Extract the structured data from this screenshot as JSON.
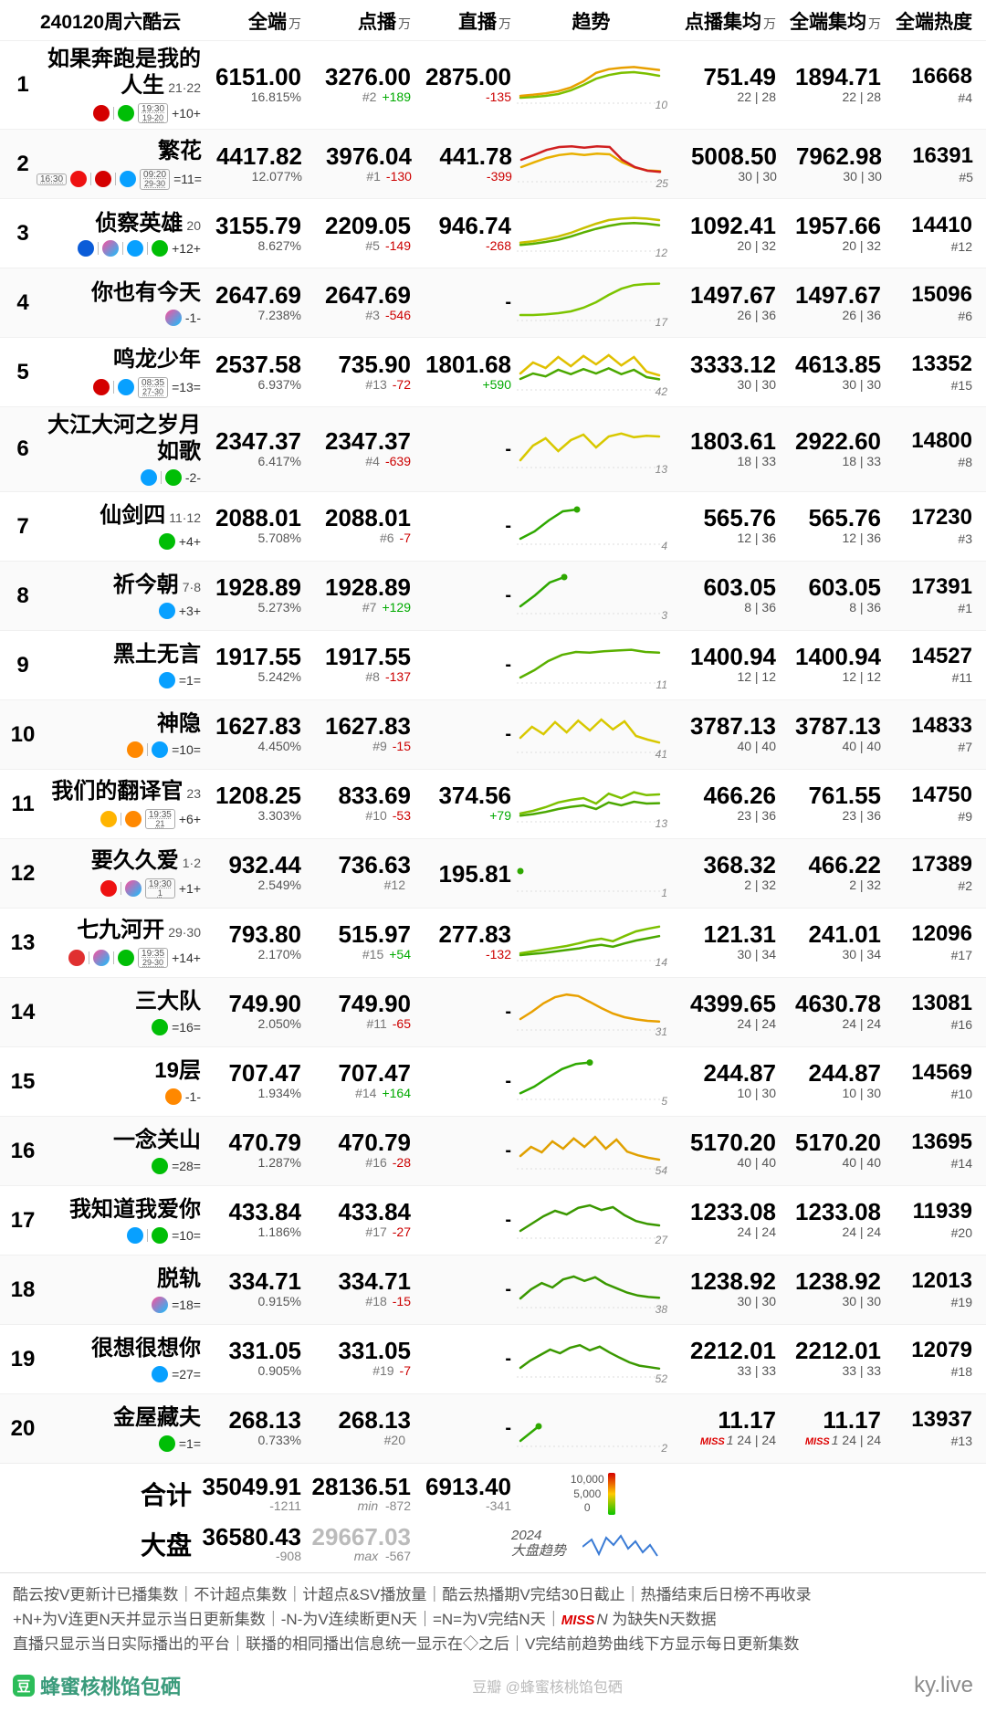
{
  "title": "240120周六酷云",
  "columns": {
    "full": "全端",
    "vod": "点播",
    "live": "直播",
    "trend": "趋势",
    "vavg": "点播集均",
    "favg": "全端集均",
    "heat": "全端热度",
    "unit": "万"
  },
  "spark_colors": {
    "high": "#f08000",
    "mid": "#d8c000",
    "low": "#2ea800",
    "red": "#d02020",
    "grid": "#e4e4e4"
  },
  "rows": [
    {
      "rank": 1,
      "name": "如果奔跑是我的人生",
      "eps": "21·22",
      "streak": "+10+",
      "platforms": [
        "cctv",
        "iqiyi"
      ],
      "time": {
        "t1": "19:30",
        "t2": "19-20"
      },
      "full": "6151.00",
      "full_pct": "16.815%",
      "vod": "3276.00",
      "vod_rank": "#2",
      "vod_delta": "+189",
      "live": "2875.00",
      "live_delta": "-135",
      "trend": {
        "series": [
          0.15,
          0.18,
          0.22,
          0.28,
          0.38,
          0.55,
          0.78,
          0.88,
          0.92,
          0.94,
          0.9,
          0.86
        ],
        "color": "#e8a000",
        "series2": [
          0.1,
          0.12,
          0.15,
          0.2,
          0.3,
          0.45,
          0.62,
          0.72,
          0.78,
          0.8,
          0.76,
          0.7
        ],
        "color2": "#7cc000",
        "note": "10"
      },
      "vavg": "751.49",
      "vavg_sub": "22 | 28",
      "favg": "1894.71",
      "favg_sub": "22 | 28",
      "heat": "16668",
      "heat_rank": "#4"
    },
    {
      "rank": 2,
      "name": "繁花",
      "eps": "",
      "streak": "=11=",
      "platforms": [
        "dragon",
        "cctv",
        "tenc"
      ],
      "time": {
        "t1": "09:20",
        "t2": "29-30"
      },
      "time_pre": "16:30",
      "full": "4417.82",
      "full_pct": "12.077%",
      "vod": "3976.04",
      "vod_rank": "#1",
      "vod_delta": "-130",
      "live": "441.78",
      "live_delta": "-399",
      "trend": {
        "series": [
          0.55,
          0.68,
          0.82,
          0.9,
          0.92,
          0.88,
          0.92,
          0.9,
          0.55,
          0.35,
          0.25,
          0.22
        ],
        "color": "#d02020",
        "series2": [
          0.35,
          0.48,
          0.6,
          0.68,
          0.72,
          0.68,
          0.72,
          0.7,
          0.48,
          0.34,
          0.26,
          0.24
        ],
        "color2": "#e8b000",
        "note": "25"
      },
      "vavg": "5008.50",
      "vavg_sub": "30 | 30",
      "favg": "7962.98",
      "favg_sub": "30 | 30",
      "heat": "16391",
      "heat_rank": "#5"
    },
    {
      "rank": 3,
      "name": "侦察英雄",
      "eps": "20",
      "streak": "+12+",
      "platforms": [
        "ztv",
        "youku",
        "tenc",
        "iqiyi"
      ],
      "full": "3155.79",
      "full_pct": "8.627%",
      "vod": "2209.05",
      "vod_rank": "#5",
      "vod_delta": "-149",
      "live": "946.74",
      "live_delta": "-268",
      "trend": {
        "series": [
          0.18,
          0.22,
          0.28,
          0.35,
          0.45,
          0.58,
          0.7,
          0.8,
          0.84,
          0.86,
          0.84,
          0.8
        ],
        "color": "#c8c000",
        "series2": [
          0.12,
          0.15,
          0.2,
          0.26,
          0.35,
          0.46,
          0.56,
          0.64,
          0.7,
          0.72,
          0.7,
          0.66
        ],
        "color2": "#5ab000",
        "note": "12"
      },
      "vavg": "1092.41",
      "vavg_sub": "20 | 32",
      "favg": "1957.66",
      "favg_sub": "20 | 32",
      "heat": "14410",
      "heat_rank": "#12"
    },
    {
      "rank": 4,
      "name": "你也有今天",
      "eps": "",
      "streak": "-1-",
      "platforms": [
        "youku"
      ],
      "full": "2647.69",
      "full_pct": "7.238%",
      "vod": "2647.69",
      "vod_rank": "#3",
      "vod_delta": "-546",
      "live": "-",
      "live_delta": "",
      "trend": {
        "series": [
          0.1,
          0.1,
          0.12,
          0.15,
          0.2,
          0.3,
          0.45,
          0.65,
          0.82,
          0.92,
          0.95,
          0.96
        ],
        "color": "#7cc400",
        "note": "17"
      },
      "vavg": "1497.67",
      "vavg_sub": "26 | 36",
      "favg": "1497.67",
      "favg_sub": "26 | 36",
      "heat": "15096",
      "heat_rank": "#6"
    },
    {
      "rank": 5,
      "name": "鸣龙少年",
      "eps": "",
      "streak": "=13=",
      "platforms": [
        "cctv",
        "tenc"
      ],
      "time": {
        "t1": "08:35",
        "t2": "27-30"
      },
      "full": "2537.58",
      "full_pct": "6.937%",
      "vod": "735.90",
      "vod_rank": "#13",
      "vod_delta": "-72",
      "live": "1801.68",
      "live_delta": "+590",
      "trend": {
        "series": [
          0.4,
          0.7,
          0.55,
          0.85,
          0.6,
          0.88,
          0.65,
          0.9,
          0.62,
          0.85,
          0.45,
          0.35
        ],
        "color": "#e0c000",
        "series2": [
          0.25,
          0.4,
          0.32,
          0.5,
          0.38,
          0.52,
          0.4,
          0.54,
          0.38,
          0.5,
          0.3,
          0.24
        ],
        "color2": "#4aa800",
        "note": "42"
      },
      "vavg": "3333.12",
      "vavg_sub": "30 | 30",
      "favg": "4613.85",
      "favg_sub": "30 | 30",
      "heat": "13352",
      "heat_rank": "#15"
    },
    {
      "rank": 6,
      "name": "大江大河之岁月如歌",
      "eps": "",
      "streak": "-2-",
      "platforms": [
        "tenc",
        "iqiyi"
      ],
      "full": "2347.37",
      "full_pct": "6.417%",
      "vod": "2347.37",
      "vod_rank": "#4",
      "vod_delta": "-639",
      "live": "-",
      "live_delta": "",
      "trend": {
        "series": [
          0.15,
          0.55,
          0.75,
          0.4,
          0.7,
          0.85,
          0.5,
          0.8,
          0.88,
          0.78,
          0.82,
          0.8
        ],
        "color": "#d8c800",
        "note": "13"
      },
      "vavg": "1803.61",
      "vavg_sub": "18 | 33",
      "favg": "2922.60",
      "favg_sub": "18 | 33",
      "heat": "14800",
      "heat_rank": "#8"
    },
    {
      "rank": 7,
      "name": "仙剑四",
      "eps": "11·12",
      "streak": "+4+",
      "platforms": [
        "iqiyi"
      ],
      "full": "2088.01",
      "full_pct": "5.708%",
      "vod": "2088.01",
      "vod_rank": "#6",
      "vod_delta": "-7",
      "live": "-",
      "live_delta": "",
      "trend": {
        "series": [
          0.1,
          0.3,
          0.6,
          0.85,
          0.9
        ],
        "color": "#2ea800",
        "short": true,
        "note": "4"
      },
      "vavg": "565.76",
      "vavg_sub": "12 | 36",
      "favg": "565.76",
      "favg_sub": "12 | 36",
      "heat": "17230",
      "heat_rank": "#3"
    },
    {
      "rank": 8,
      "name": "祈今朝",
      "eps": "7·8",
      "streak": "+3+",
      "platforms": [
        "tenc"
      ],
      "full": "1928.89",
      "full_pct": "5.273%",
      "vod": "1928.89",
      "vod_rank": "#7",
      "vod_delta": "+129",
      "live": "-",
      "live_delta": "",
      "trend": {
        "series": [
          0.15,
          0.45,
          0.8,
          0.95
        ],
        "color": "#2ea800",
        "short": true,
        "note": "3"
      },
      "vavg": "603.05",
      "vavg_sub": "8 | 36",
      "favg": "603.05",
      "favg_sub": "8 | 36",
      "heat": "17391",
      "heat_rank": "#1"
    },
    {
      "rank": 9,
      "name": "黑土无言",
      "eps": "",
      "streak": "=1=",
      "platforms": [
        "tenc"
      ],
      "full": "1917.55",
      "full_pct": "5.242%",
      "vod": "1917.55",
      "vod_rank": "#8",
      "vod_delta": "-137",
      "live": "-",
      "live_delta": "",
      "trend": {
        "series": [
          0.1,
          0.3,
          0.55,
          0.72,
          0.8,
          0.78,
          0.82,
          0.84,
          0.86,
          0.8,
          0.78
        ],
        "color": "#5ab000",
        "note": "11"
      },
      "vavg": "1400.94",
      "vavg_sub": "12 | 12",
      "favg": "1400.94",
      "favg_sub": "12 | 12",
      "heat": "14527",
      "heat_rank": "#11"
    },
    {
      "rank": 10,
      "name": "神隐",
      "eps": "",
      "streak": "=10=",
      "platforms": [
        "mgtv",
        "tenc"
      ],
      "full": "1627.83",
      "full_pct": "4.450%",
      "vod": "1627.83",
      "vod_rank": "#9",
      "vod_delta": "-15",
      "live": "-",
      "live_delta": "",
      "trend": {
        "series": [
          0.35,
          0.65,
          0.45,
          0.78,
          0.5,
          0.82,
          0.55,
          0.85,
          0.58,
          0.8,
          0.4,
          0.3,
          0.22
        ],
        "color": "#d8c800",
        "note": "41"
      },
      "vavg": "3787.13",
      "vavg_sub": "40 | 40",
      "favg": "3787.13",
      "favg_sub": "40 | 40",
      "heat": "14833",
      "heat_rank": "#7"
    },
    {
      "rank": 11,
      "name": "我们的翻译官",
      "eps": "23",
      "streak": "+6+",
      "platforms": [
        "hunan",
        "mgtv"
      ],
      "time": {
        "t1": "19:35",
        "t2": "21"
      },
      "full": "1208.25",
      "full_pct": "3.303%",
      "vod": "833.69",
      "vod_rank": "#10",
      "vod_delta": "-53",
      "live": "374.56",
      "live_delta": "+79",
      "trend": {
        "series": [
          0.18,
          0.25,
          0.35,
          0.48,
          0.55,
          0.6,
          0.45,
          0.72,
          0.6,
          0.76,
          0.68,
          0.7
        ],
        "color": "#7cc000",
        "series2": [
          0.12,
          0.16,
          0.22,
          0.3,
          0.36,
          0.4,
          0.3,
          0.48,
          0.4,
          0.5,
          0.45,
          0.46
        ],
        "color2": "#4aa800",
        "note": "13"
      },
      "vavg": "466.26",
      "vavg_sub": "23 | 36",
      "favg": "761.55",
      "favg_sub": "23 | 36",
      "heat": "14750",
      "heat_rank": "#9"
    },
    {
      "rank": 12,
      "name": "要久久爱",
      "eps": "1·2",
      "streak": "+1+",
      "platforms": [
        "dragon",
        "youku"
      ],
      "time": {
        "t1": "19:30",
        "t2": "1"
      },
      "full": "932.44",
      "full_pct": "2.549%",
      "vod": "736.63",
      "vod_rank": "#12",
      "vod_delta": "",
      "live": "195.81",
      "live_delta": "",
      "trend": {
        "series": [
          0.5
        ],
        "color": "#2ea800",
        "dot": true,
        "note": "1"
      },
      "vavg": "368.32",
      "vavg_sub": "2 | 32",
      "favg": "466.22",
      "favg_sub": "2 | 32",
      "heat": "17389",
      "heat_rank": "#2"
    },
    {
      "rank": 13,
      "name": "七九河开",
      "eps": "29·30",
      "streak": "+14+",
      "platforms": [
        "btv",
        "youku",
        "iqiyi"
      ],
      "time": {
        "t1": "19:35",
        "t2": "29-30"
      },
      "full": "793.80",
      "full_pct": "2.170%",
      "vod": "515.97",
      "vod_rank": "#15",
      "vod_delta": "+54",
      "live": "277.83",
      "live_delta": "-132",
      "trend": {
        "series": [
          0.15,
          0.2,
          0.25,
          0.3,
          0.35,
          0.42,
          0.5,
          0.55,
          0.48,
          0.62,
          0.75,
          0.82,
          0.88
        ],
        "color": "#7cc000",
        "series2": [
          0.1,
          0.13,
          0.16,
          0.2,
          0.24,
          0.28,
          0.34,
          0.38,
          0.33,
          0.42,
          0.5,
          0.56,
          0.62
        ],
        "color2": "#4aa800",
        "note": "14"
      },
      "vavg": "121.31",
      "vavg_sub": "30 | 34",
      "favg": "241.01",
      "favg_sub": "30 | 34",
      "heat": "12096",
      "heat_rank": "#17"
    },
    {
      "rank": 14,
      "name": "三大队",
      "eps": "",
      "streak": "=16=",
      "platforms": [
        "iqiyi"
      ],
      "full": "749.90",
      "full_pct": "2.050%",
      "vod": "749.90",
      "vod_rank": "#11",
      "vod_delta": "-65",
      "live": "-",
      "live_delta": "",
      "trend": {
        "series": [
          0.25,
          0.45,
          0.68,
          0.85,
          0.92,
          0.88,
          0.72,
          0.55,
          0.4,
          0.3,
          0.24,
          0.2,
          0.18
        ],
        "color": "#e8a000",
        "note": "31"
      },
      "vavg": "4399.65",
      "vavg_sub": "24 | 24",
      "favg": "4630.78",
      "favg_sub": "24 | 24",
      "heat": "13081",
      "heat_rank": "#16"
    },
    {
      "rank": 15,
      "name": "19层",
      "eps": "",
      "streak": "-1-",
      "platforms": [
        "mgtv"
      ],
      "full": "707.47",
      "full_pct": "1.934%",
      "vod": "707.47",
      "vod_rank": "#14",
      "vod_delta": "+164",
      "live": "-",
      "live_delta": "",
      "trend": {
        "series": [
          0.12,
          0.3,
          0.55,
          0.78,
          0.92,
          0.96
        ],
        "color": "#2ea800",
        "short": true,
        "note": "5"
      },
      "vavg": "244.87",
      "vavg_sub": "10 | 30",
      "favg": "244.87",
      "favg_sub": "10 | 30",
      "heat": "14569",
      "heat_rank": "#10"
    },
    {
      "rank": 16,
      "name": "一念关山",
      "eps": "",
      "streak": "=28=",
      "platforms": [
        "iqiyi"
      ],
      "full": "470.79",
      "full_pct": "1.287%",
      "vod": "470.79",
      "vod_rank": "#16",
      "vod_delta": "-28",
      "live": "-",
      "live_delta": "",
      "trend": {
        "series": [
          0.3,
          0.55,
          0.4,
          0.7,
          0.5,
          0.78,
          0.55,
          0.82,
          0.5,
          0.75,
          0.42,
          0.32,
          0.25,
          0.2
        ],
        "color": "#e0a000",
        "note": "54"
      },
      "vavg": "5170.20",
      "vavg_sub": "40 | 40",
      "favg": "5170.20",
      "favg_sub": "40 | 40",
      "heat": "13695",
      "heat_rank": "#14"
    },
    {
      "rank": 17,
      "name": "我知道我爱你",
      "eps": "",
      "streak": "=10=",
      "platforms": [
        "tenc",
        "iqiyi"
      ],
      "full": "433.84",
      "full_pct": "1.186%",
      "vod": "433.84",
      "vod_rank": "#17",
      "vod_delta": "-27",
      "live": "-",
      "live_delta": "",
      "trend": {
        "series": [
          0.15,
          0.35,
          0.55,
          0.7,
          0.6,
          0.78,
          0.85,
          0.72,
          0.8,
          0.58,
          0.42,
          0.34,
          0.3
        ],
        "color": "#3a9800",
        "note": "27"
      },
      "vavg": "1233.08",
      "vavg_sub": "24 | 24",
      "favg": "1233.08",
      "favg_sub": "24 | 24",
      "heat": "11939",
      "heat_rank": "#20"
    },
    {
      "rank": 18,
      "name": "脱轨",
      "eps": "",
      "streak": "=18=",
      "platforms": [
        "youku"
      ],
      "full": "334.71",
      "full_pct": "0.915%",
      "vod": "334.71",
      "vod_rank": "#18",
      "vod_delta": "-15",
      "live": "-",
      "live_delta": "",
      "trend": {
        "series": [
          0.2,
          0.45,
          0.62,
          0.5,
          0.72,
          0.8,
          0.68,
          0.78,
          0.6,
          0.48,
          0.36,
          0.28,
          0.24,
          0.22
        ],
        "color": "#3a9800",
        "note": "38"
      },
      "vavg": "1238.92",
      "vavg_sub": "30 | 30",
      "favg": "1238.92",
      "favg_sub": "30 | 30",
      "heat": "12013",
      "heat_rank": "#19"
    },
    {
      "rank": 19,
      "name": "很想很想你",
      "eps": "",
      "streak": "=27=",
      "platforms": [
        "tenc"
      ],
      "full": "331.05",
      "full_pct": "0.905%",
      "vod": "331.05",
      "vod_rank": "#19",
      "vod_delta": "-7",
      "live": "-",
      "live_delta": "",
      "trend": {
        "series": [
          0.2,
          0.4,
          0.55,
          0.7,
          0.6,
          0.75,
          0.82,
          0.68,
          0.78,
          0.62,
          0.48,
          0.35,
          0.26,
          0.22,
          0.18
        ],
        "color": "#3a9800",
        "note": "52"
      },
      "vavg": "2212.01",
      "vavg_sub": "33 | 33",
      "favg": "2212.01",
      "favg_sub": "33 | 33",
      "heat": "12079",
      "heat_rank": "#18"
    },
    {
      "rank": 20,
      "name": "金屋藏夫",
      "eps": "",
      "streak": "=1=",
      "platforms": [
        "iqiyi"
      ],
      "full": "268.13",
      "full_pct": "0.733%",
      "vod": "268.13",
      "vod_rank": "#20",
      "vod_delta": "",
      "live": "-",
      "live_delta": "",
      "trend": {
        "series": [
          0.1,
          0.5
        ],
        "color": "#2ea800",
        "short": true,
        "note": "2"
      },
      "vavg": "11.17",
      "vavg_sub": "24 | 24",
      "vavg_miss": "1",
      "favg": "11.17",
      "favg_sub": "24 | 24",
      "favg_miss": "1",
      "heat": "13937",
      "heat_rank": "#13"
    }
  ],
  "totals": {
    "sum_label": "合计",
    "full": "35049.91",
    "full_d": "-1211",
    "vod": "28136.51",
    "vod_tag": "min",
    "vod_d": "-872",
    "live": "6913.40",
    "live_d": "-341",
    "legend_hi": "10,000",
    "legend_mid": "5,000",
    "legend_lo": "0",
    "market_label": "大盘",
    "m_full": "36580.43",
    "m_full_d": "-908",
    "m_vod": "29667.03",
    "m_vod_tag": "max",
    "m_vod_d": "-567",
    "m_trend_year": "2024",
    "m_trend_label": "大盘趋势"
  },
  "footer": {
    "l1": "酷云按V更新计已播集数｜不计超点集数｜计超点&SV播放量｜酷云热播期V完结30日截止｜热播结束后日榜不再收录",
    "l2a": "+N+为V连更N天并显示当日更新集数｜-N-为V连续断更N天｜=N=为V完结N天｜",
    "l2miss": "MISS",
    "l2n": "N",
    "l2b": " 为缺失N天数据",
    "l3": "直播只显示当日实际播出的平台｜联播的相同播出信息统一显示在◇之后｜V完结前趋势曲线下方显示每日更新集数"
  },
  "brand": {
    "name": "蜂蜜核桃馅包硒",
    "mid": "豆瓣 @蜂蜜核桃馅包硒",
    "site": "ky.live"
  }
}
